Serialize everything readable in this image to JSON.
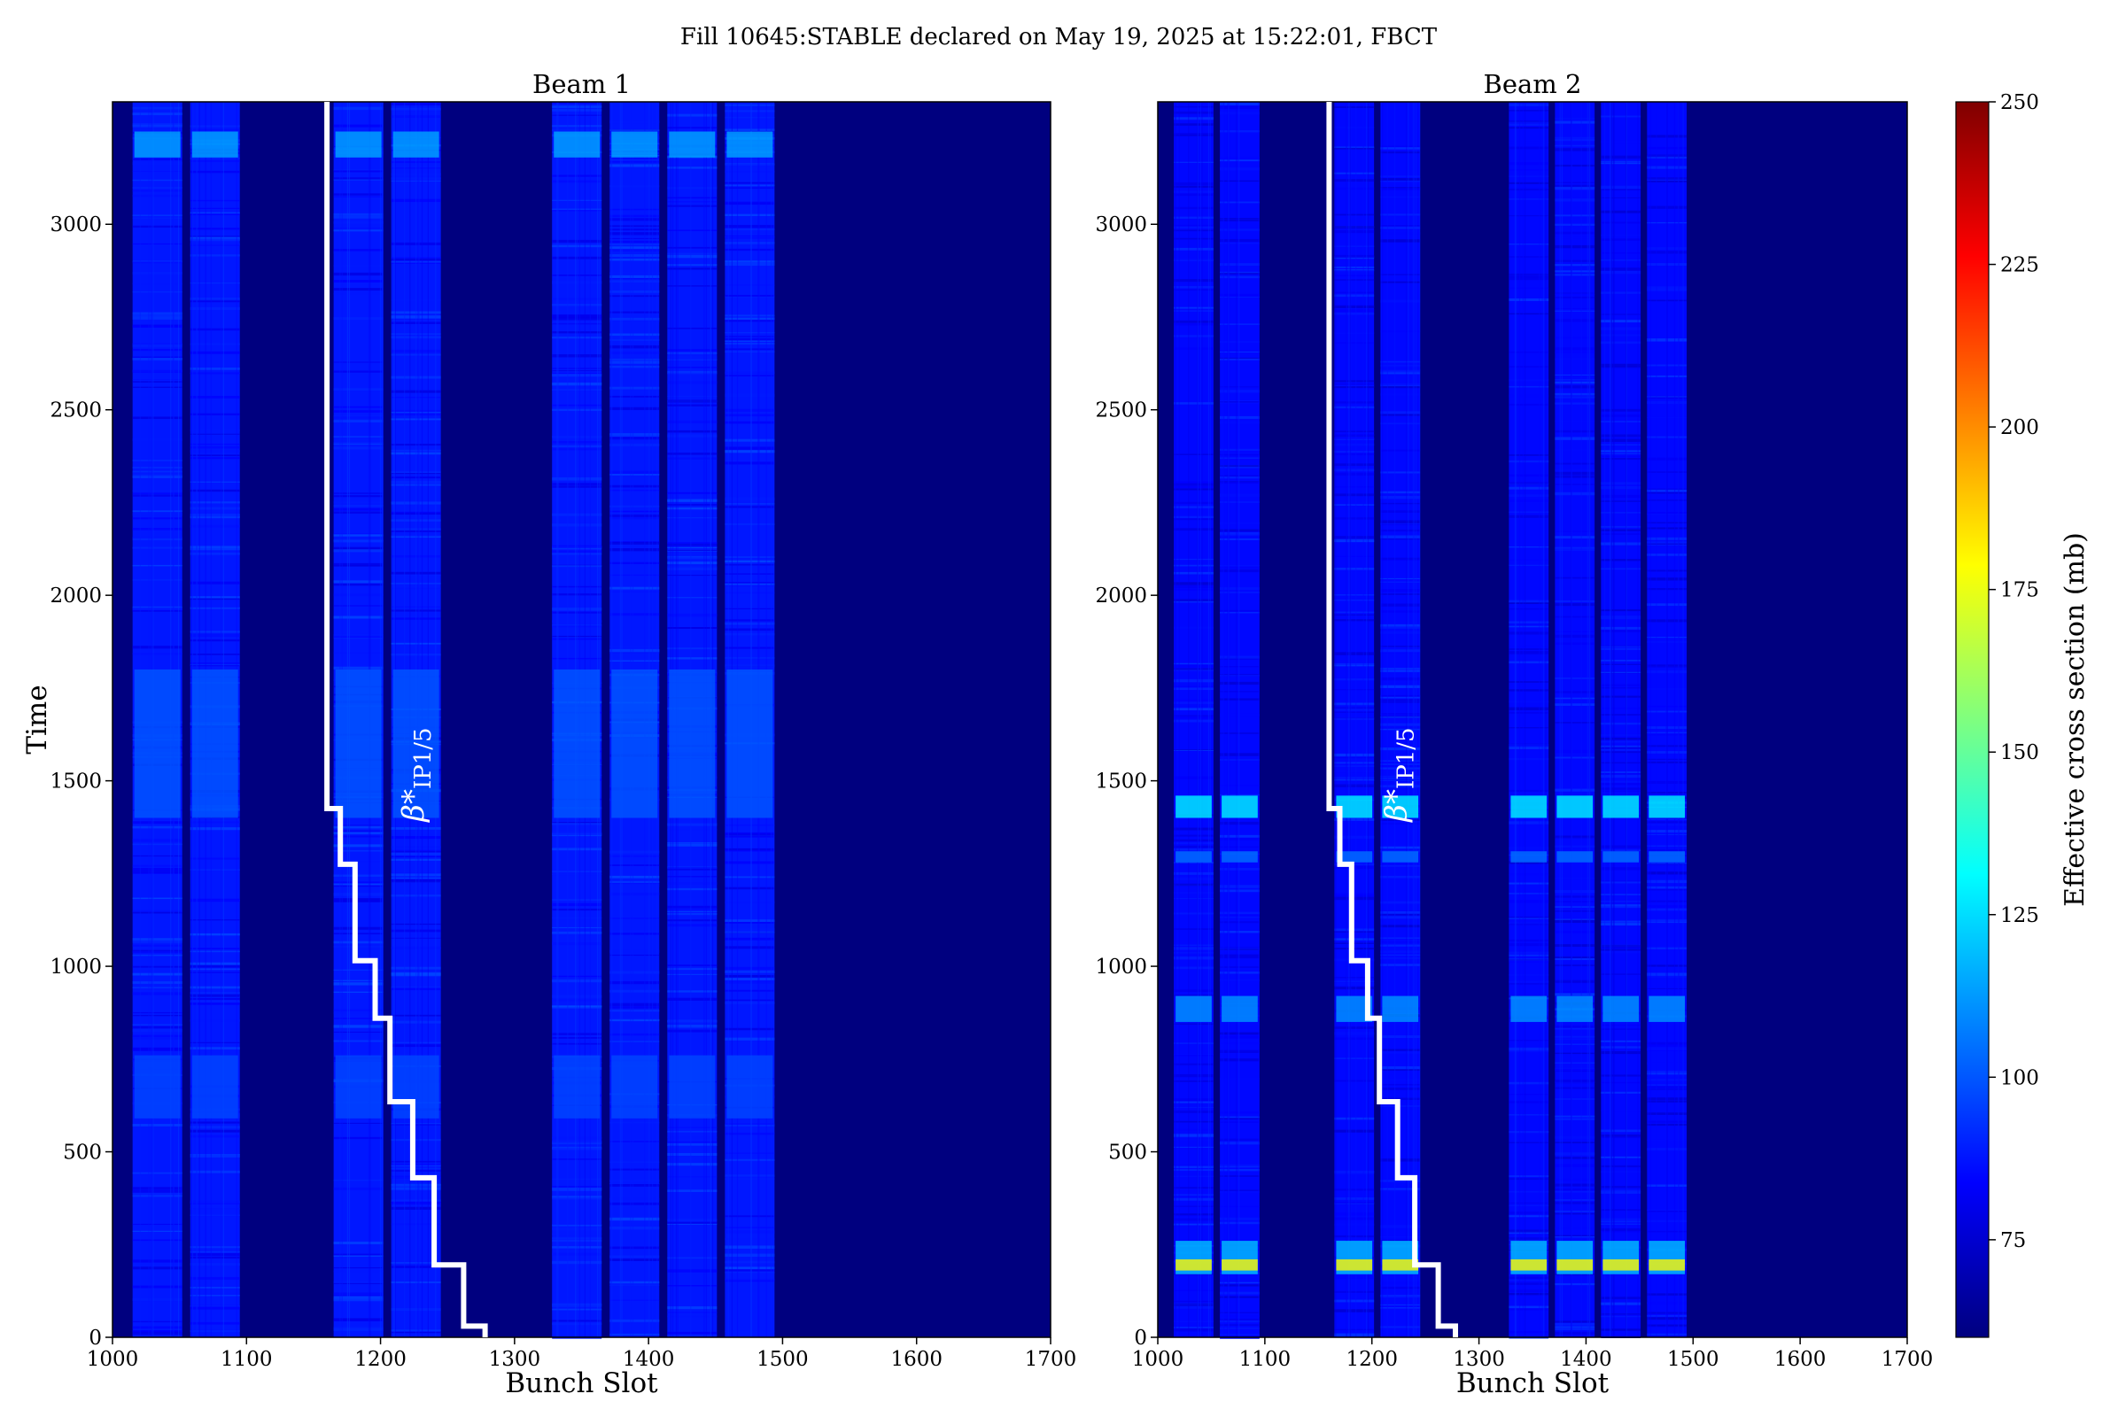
{
  "figure_title": "Fill 10645:STABLE declared on May 19, 2025 at 15:22:01, FBCT",
  "colors": {
    "background_bins": "#00007f",
    "bunch_train_base": "#1c3df0",
    "step_line": "#ffffff",
    "colormap": [
      "#00007f",
      "#0000ff",
      "#007fff",
      "#00ffff",
      "#7fff7f",
      "#ffff00",
      "#ff7f00",
      "#ff0000",
      "#7f0000"
    ]
  },
  "chart_data": [
    {
      "type": "heatmap",
      "title": "Beam 1",
      "xlabel": "Bunch Slot",
      "ylabel": "Time",
      "xlim": [
        1000,
        1700
      ],
      "ylim": [
        0,
        3330
      ],
      "xticks": [
        1000,
        1100,
        1200,
        1300,
        1400,
        1500,
        1600,
        1700
      ],
      "yticks": [
        0,
        500,
        1000,
        1500,
        2000,
        2500,
        3000
      ],
      "bunch_trains": [
        [
          1015,
          1052
        ],
        [
          1058,
          1095
        ],
        [
          1165,
          1202
        ],
        [
          1208,
          1245
        ],
        [
          1328,
          1365
        ],
        [
          1371,
          1408
        ],
        [
          1414,
          1451
        ],
        [
          1457,
          1494
        ]
      ],
      "background_value": 60,
      "typical_value": 88,
      "bright_bands": [
        {
          "time_range": [
            3180,
            3250
          ],
          "value": 115
        },
        {
          "time_range": [
            1400,
            1800
          ],
          "value": 100
        },
        {
          "time_range": [
            590,
            760
          ],
          "value": 97
        }
      ],
      "step_line": {
        "points": [
          [
            1278,
            0
          ],
          [
            1278,
            30
          ],
          [
            1262,
            30
          ],
          [
            1262,
            195
          ],
          [
            1240,
            195
          ],
          [
            1240,
            430
          ],
          [
            1224,
            430
          ],
          [
            1224,
            635
          ],
          [
            1207,
            635
          ],
          [
            1207,
            860
          ],
          [
            1196,
            860
          ],
          [
            1196,
            1015
          ],
          [
            1181,
            1015
          ],
          [
            1181,
            1275
          ],
          [
            1170,
            1275
          ],
          [
            1170,
            1425
          ],
          [
            1160,
            1425
          ],
          [
            1160,
            3330
          ]
        ],
        "label": "β*",
        "label_subscript": "IP1/5"
      }
    },
    {
      "type": "heatmap",
      "title": "Beam 2",
      "xlabel": "Bunch Slot",
      "ylabel": "",
      "xlim": [
        1000,
        1700
      ],
      "ylim": [
        0,
        3330
      ],
      "xticks": [
        1000,
        1100,
        1200,
        1300,
        1400,
        1500,
        1600,
        1700
      ],
      "yticks": [
        0,
        500,
        1000,
        1500,
        2000,
        2500,
        3000
      ],
      "bunch_trains": [
        [
          1015,
          1052
        ],
        [
          1058,
          1095
        ],
        [
          1165,
          1202
        ],
        [
          1208,
          1245
        ],
        [
          1328,
          1365
        ],
        [
          1371,
          1408
        ],
        [
          1414,
          1451
        ],
        [
          1457,
          1494
        ]
      ],
      "background_value": 60,
      "typical_value": 85,
      "bright_bands": [
        {
          "time_range": [
            170,
            260
          ],
          "value": 120
        },
        {
          "time_range": [
            180,
            210
          ],
          "value": 180
        },
        {
          "time_range": [
            1400,
            1460
          ],
          "value": 130
        },
        {
          "time_range": [
            850,
            920
          ],
          "value": 112
        },
        {
          "time_range": [
            1280,
            1310
          ],
          "value": 105
        }
      ],
      "step_line": {
        "points": [
          [
            1278,
            0
          ],
          [
            1278,
            30
          ],
          [
            1262,
            30
          ],
          [
            1262,
            195
          ],
          [
            1240,
            195
          ],
          [
            1240,
            430
          ],
          [
            1224,
            430
          ],
          [
            1224,
            635
          ],
          [
            1207,
            635
          ],
          [
            1207,
            860
          ],
          [
            1196,
            860
          ],
          [
            1196,
            1015
          ],
          [
            1181,
            1015
          ],
          [
            1181,
            1275
          ],
          [
            1170,
            1275
          ],
          [
            1170,
            1425
          ],
          [
            1160,
            1425
          ],
          [
            1160,
            3330
          ]
        ],
        "label": "β*",
        "label_subscript": "IP1/5"
      }
    }
  ],
  "colorbar": {
    "label": "Effective cross section (mb)",
    "range": [
      60,
      250
    ],
    "ticks": [
      75,
      100,
      125,
      150,
      175,
      200,
      225,
      250
    ]
  }
}
